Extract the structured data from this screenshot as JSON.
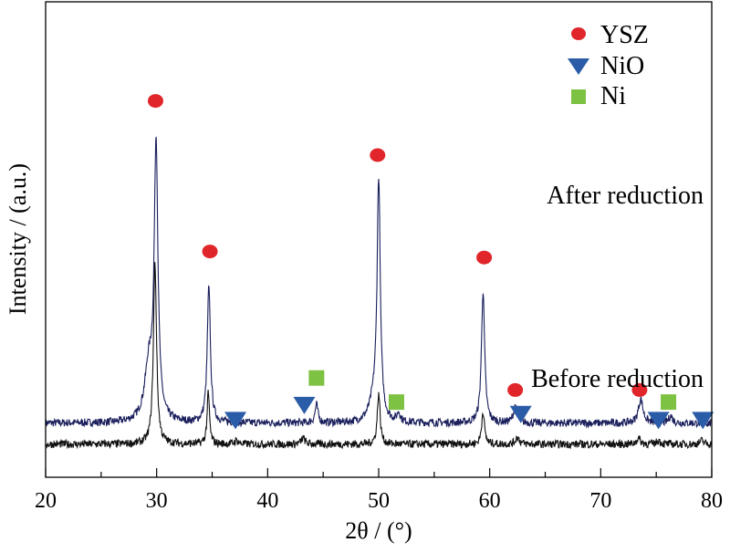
{
  "chart_data": {
    "type": "line",
    "xlabel": "2θ / (°)",
    "ylabel": "Intensity / (a.u.)",
    "xlim": [
      20,
      80
    ],
    "x_ticks": [
      "20",
      "30",
      "40",
      "50",
      "60",
      "70",
      "80"
    ],
    "legend": {
      "placement": "top-right",
      "entries": [
        {
          "label": "YSZ",
          "marker": "circle",
          "color": "#e0262b"
        },
        {
          "label": "NiO",
          "marker": "triangle-down",
          "color": "#2b5ca8"
        },
        {
          "label": "Ni",
          "marker": "square",
          "color": "#7dc242"
        }
      ]
    },
    "series": [
      {
        "label": "After reduction",
        "color": "#1a1f5c",
        "baseline": 0.55,
        "peaks": [
          {
            "x": 29.3,
            "h": 0.9,
            "w": 0.45
          },
          {
            "x": 29.95,
            "h": 4.5,
            "w": 0.2
          },
          {
            "x": 34.7,
            "h": 2.25,
            "w": 0.17
          },
          {
            "x": 44.4,
            "h": 0.3,
            "w": 0.16
          },
          {
            "x": 49.6,
            "h": 0.35,
            "w": 0.5
          },
          {
            "x": 50.0,
            "h": 3.9,
            "w": 0.17
          },
          {
            "x": 51.8,
            "h": 0.15,
            "w": 0.16
          },
          {
            "x": 59.4,
            "h": 2.2,
            "w": 0.17
          },
          {
            "x": 62.3,
            "h": 0.28,
            "w": 0.2
          },
          {
            "x": 73.6,
            "h": 0.4,
            "w": 0.25
          },
          {
            "x": 76.3,
            "h": 0.12,
            "w": 0.2
          }
        ],
        "markers": [
          {
            "x": 29.9,
            "marker": "circle",
            "y": 5.9
          },
          {
            "x": 34.8,
            "marker": "circle",
            "y": 3.4
          },
          {
            "x": 44.4,
            "marker": "square",
            "y": 1.3
          },
          {
            "x": 49.9,
            "marker": "circle",
            "y": 5.0
          },
          {
            "x": 51.6,
            "marker": "square",
            "y": 0.9
          },
          {
            "x": 59.5,
            "marker": "circle",
            "y": 3.3
          },
          {
            "x": 62.3,
            "marker": "circle",
            "y": 1.1
          },
          {
            "x": 73.5,
            "marker": "circle",
            "y": 1.1
          },
          {
            "x": 76.1,
            "marker": "square",
            "y": 0.9
          }
        ]
      },
      {
        "label": "Before reduction",
        "color": "#111111",
        "baseline": 0.2,
        "peaks": [
          {
            "x": 29.85,
            "h": 3.0,
            "w": 0.17
          },
          {
            "x": 34.65,
            "h": 0.85,
            "w": 0.13
          },
          {
            "x": 37.2,
            "h": 0.06,
            "w": 0.2
          },
          {
            "x": 43.2,
            "h": 0.1,
            "w": 0.2
          },
          {
            "x": 50.0,
            "h": 0.85,
            "w": 0.15
          },
          {
            "x": 59.4,
            "h": 0.55,
            "w": 0.15
          },
          {
            "x": 62.5,
            "h": 0.12,
            "w": 0.2
          },
          {
            "x": 73.4,
            "h": 0.1,
            "w": 0.2
          },
          {
            "x": 75.2,
            "h": 0.06,
            "w": 0.2
          },
          {
            "x": 79.1,
            "h": 0.06,
            "w": 0.2
          }
        ],
        "markers": [
          {
            "x": 37.1,
            "marker": "triangle-down",
            "y": 0.6
          },
          {
            "x": 43.3,
            "marker": "triangle-down",
            "y": 0.85
          },
          {
            "x": 62.8,
            "marker": "triangle-down",
            "y": 0.7
          },
          {
            "x": 75.2,
            "marker": "triangle-down",
            "y": 0.6
          },
          {
            "x": 79.2,
            "marker": "triangle-down",
            "y": 0.6
          }
        ]
      }
    ]
  }
}
